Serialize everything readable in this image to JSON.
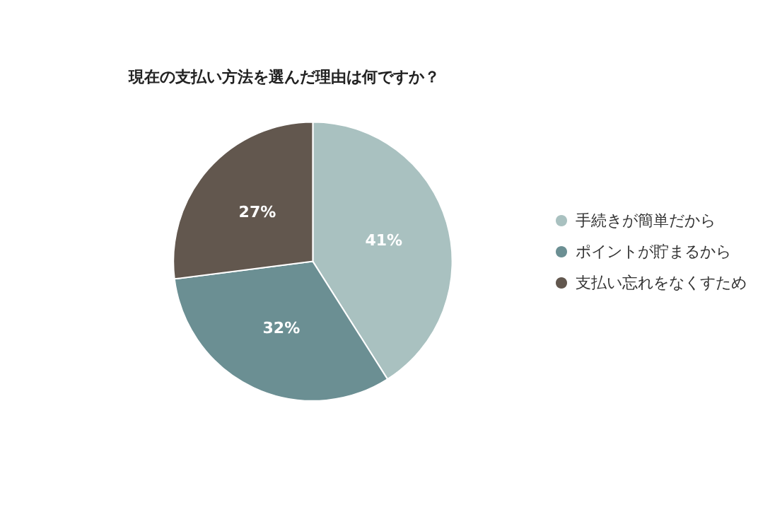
{
  "chart_data": {
    "type": "pie",
    "title": "現在の支払い方法を選んだ理由は何ですか？",
    "categories": [
      "手続きが簡単だから",
      "ポイントが貯まるから",
      "支払い忘れをなくすため"
    ],
    "values": [
      41,
      32,
      27
    ],
    "colors": [
      "#a9c1c0",
      "#6b8f93",
      "#62574e"
    ],
    "value_labels": [
      "41%",
      "32%",
      "27%"
    ],
    "legend": "right"
  }
}
